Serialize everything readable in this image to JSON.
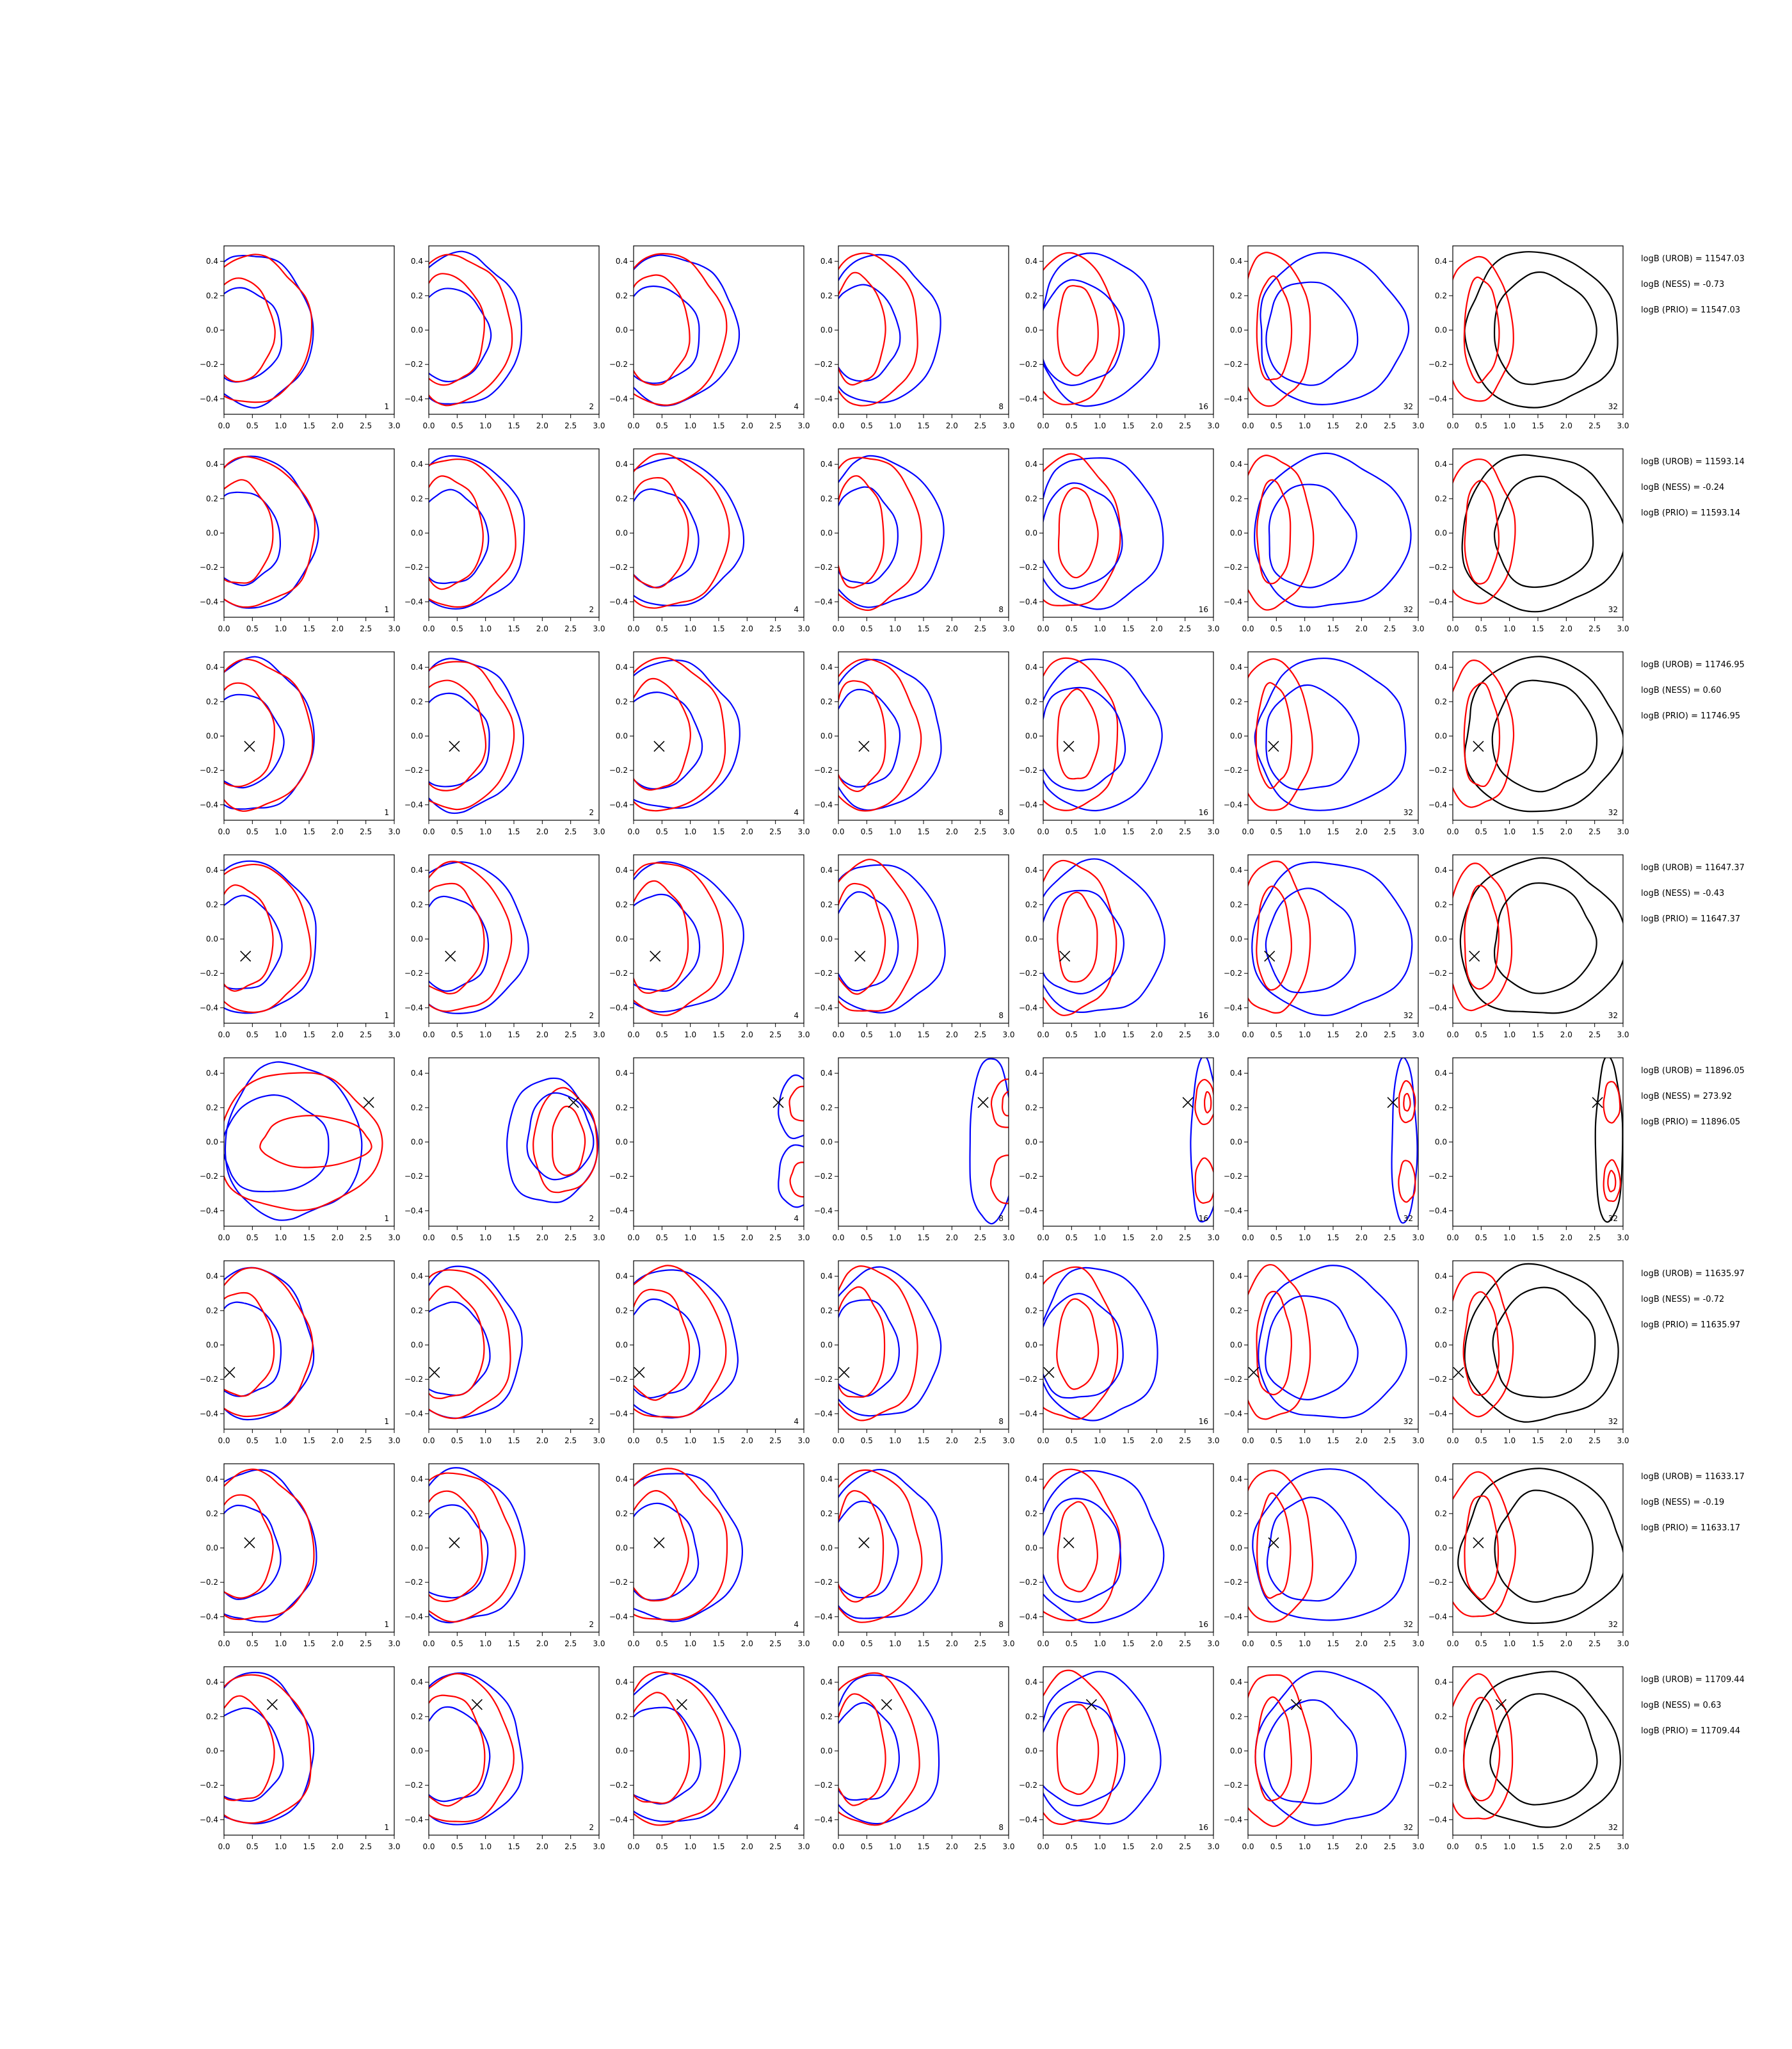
{
  "chart_data": {
    "type": "contour-grid",
    "x_ticks": [
      "0.0",
      "0.5",
      "1.0",
      "1.5",
      "2.0",
      "2.5",
      "3.0"
    ],
    "y_ticks": [
      "0.4",
      "0.2",
      "0.0",
      "−0.2",
      "−0.4"
    ],
    "xlim": [
      0,
      3
    ],
    "ylim": [
      -0.49,
      0.49
    ],
    "colors": {
      "blue": "#0000ff",
      "red": "#ff0000",
      "black": "#000000"
    },
    "columns": [
      {
        "label": "1",
        "style": "red-blue"
      },
      {
        "label": "2",
        "style": "red-blue"
      },
      {
        "label": "4",
        "style": "red-blue"
      },
      {
        "label": "8",
        "style": "red-blue"
      },
      {
        "label": "16",
        "style": "red-blue"
      },
      {
        "label": "32",
        "style": "red-blue"
      },
      {
        "label": "32",
        "style": "red-black"
      }
    ],
    "rows": [
      {
        "marker": null,
        "notes": [
          "logB (UROB) = 11547.03",
          "logB (NESS) = -0.73",
          "logB (PRIO) = 11547.03"
        ]
      },
      {
        "marker": null,
        "notes": [
          "logB (UROB) = 11593.14",
          "logB (NESS) = -0.24",
          "logB (PRIO) = 11593.14"
        ]
      },
      {
        "marker": [
          0.45,
          -0.06
        ],
        "notes": [
          "logB (UROB) = 11746.95",
          "logB (NESS) = 0.60",
          "logB (PRIO) = 11746.95"
        ]
      },
      {
        "marker": [
          0.38,
          -0.1
        ],
        "notes": [
          "logB (UROB) = 11647.37",
          "logB (NESS) = -0.43",
          "logB (PRIO) = 11647.37"
        ]
      },
      {
        "marker": [
          2.55,
          0.23
        ],
        "notes": [
          "logB (UROB) = 11896.05",
          "logB (NESS) = 273.92",
          "logB (PRIO) = 11896.05"
        ]
      },
      {
        "marker": [
          0.1,
          -0.16
        ],
        "notes": [
          "logB (UROB) = 11635.97",
          "logB (NESS) = -0.72",
          "logB (PRIO) = 11635.97"
        ]
      },
      {
        "marker": [
          0.45,
          0.03
        ],
        "notes": [
          "logB (UROB) = 11633.17",
          "logB (NESS) = -0.19",
          "logB (PRIO) = 11633.17"
        ]
      },
      {
        "marker": [
          0.85,
          0.27
        ],
        "notes": [
          "logB (UROB) = 11709.44",
          "logB (NESS) = 0.63",
          "logB (PRIO) = 11709.44"
        ]
      }
    ]
  }
}
